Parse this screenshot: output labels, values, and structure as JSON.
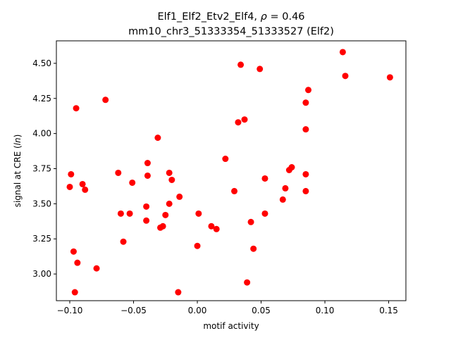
{
  "chart_data": {
    "type": "scatter",
    "title_line1_prefix": "Elf1_Elf2_Etv2_Elf4, ",
    "title_line1_rho": "ρ",
    "title_line1_suffix": " = 0.46",
    "title_line2": "mm10_chr3_51333354_51333527 (Elf2)",
    "xlabel": "motif activity",
    "ylabel_prefix": "signal at CRE (",
    "ylabel_italic": "ln",
    "ylabel_suffix": ")",
    "xlim": [
      -0.1105,
      0.1635
    ],
    "ylim": [
      2.81,
      4.66
    ],
    "xticks": [
      -0.1,
      -0.05,
      0.0,
      0.05,
      0.1,
      0.15
    ],
    "xtick_labels": [
      "−0.10",
      "−0.05",
      "0.00",
      "0.05",
      "0.10",
      "0.15"
    ],
    "yticks": [
      3.0,
      3.25,
      3.5,
      3.75,
      4.0,
      4.25,
      4.5
    ],
    "ytick_labels": [
      "3.00",
      "3.25",
      "3.50",
      "3.75",
      "4.00",
      "4.25",
      "4.50"
    ],
    "marker_color": "#ff0000",
    "grid": false,
    "points": [
      {
        "x": -0.099,
        "y": 3.71
      },
      {
        "x": -0.1,
        "y": 3.62
      },
      {
        "x": -0.097,
        "y": 3.16
      },
      {
        "x": -0.095,
        "y": 4.18
      },
      {
        "x": -0.094,
        "y": 3.08
      },
      {
        "x": -0.096,
        "y": 2.87
      },
      {
        "x": -0.09,
        "y": 3.64
      },
      {
        "x": -0.088,
        "y": 3.6
      },
      {
        "x": -0.079,
        "y": 3.04
      },
      {
        "x": -0.072,
        "y": 4.24
      },
      {
        "x": -0.062,
        "y": 3.72
      },
      {
        "x": -0.06,
        "y": 3.43
      },
      {
        "x": -0.058,
        "y": 3.23
      },
      {
        "x": -0.053,
        "y": 3.43
      },
      {
        "x": -0.051,
        "y": 3.65
      },
      {
        "x": -0.04,
        "y": 3.48
      },
      {
        "x": -0.04,
        "y": 3.38
      },
      {
        "x": -0.039,
        "y": 3.79
      },
      {
        "x": -0.039,
        "y": 3.7
      },
      {
        "x": -0.031,
        "y": 3.97
      },
      {
        "x": -0.029,
        "y": 3.33
      },
      {
        "x": -0.027,
        "y": 3.34
      },
      {
        "x": -0.025,
        "y": 3.42
      },
      {
        "x": -0.022,
        "y": 3.72
      },
      {
        "x": -0.022,
        "y": 3.5
      },
      {
        "x": -0.02,
        "y": 3.67
      },
      {
        "x": -0.014,
        "y": 3.55
      },
      {
        "x": -0.015,
        "y": 2.87
      },
      {
        "x": 0.0,
        "y": 3.2
      },
      {
        "x": 0.001,
        "y": 3.43
      },
      {
        "x": 0.011,
        "y": 3.34
      },
      {
        "x": 0.015,
        "y": 3.32
      },
      {
        "x": 0.022,
        "y": 3.82
      },
      {
        "x": 0.029,
        "y": 3.59
      },
      {
        "x": 0.032,
        "y": 4.08
      },
      {
        "x": 0.034,
        "y": 4.49
      },
      {
        "x": 0.037,
        "y": 4.1
      },
      {
        "x": 0.039,
        "y": 2.94
      },
      {
        "x": 0.042,
        "y": 3.37
      },
      {
        "x": 0.044,
        "y": 3.18
      },
      {
        "x": 0.049,
        "y": 4.46
      },
      {
        "x": 0.053,
        "y": 3.68
      },
      {
        "x": 0.053,
        "y": 3.43
      },
      {
        "x": 0.067,
        "y": 3.53
      },
      {
        "x": 0.069,
        "y": 3.61
      },
      {
        "x": 0.072,
        "y": 3.74
      },
      {
        "x": 0.074,
        "y": 3.76
      },
      {
        "x": 0.085,
        "y": 4.22
      },
      {
        "x": 0.085,
        "y": 4.03
      },
      {
        "x": 0.085,
        "y": 3.71
      },
      {
        "x": 0.085,
        "y": 3.59
      },
      {
        "x": 0.087,
        "y": 4.31
      },
      {
        "x": 0.114,
        "y": 4.58
      },
      {
        "x": 0.116,
        "y": 4.41
      },
      {
        "x": 0.151,
        "y": 4.4
      }
    ]
  }
}
